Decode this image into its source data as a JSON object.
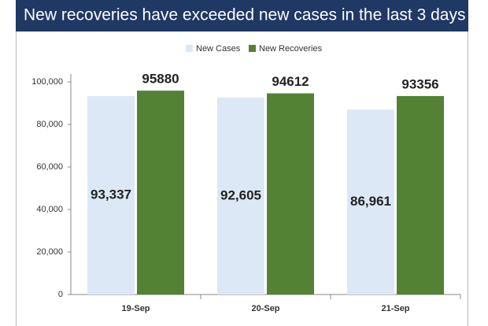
{
  "chart_data": {
    "type": "bar",
    "title": "New recoveries have exceeded new cases in the last 3 days",
    "categories": [
      "19-Sep",
      "20-Sep",
      "21-Sep"
    ],
    "series": [
      {
        "name": "New Cases",
        "color": "#dce8f5",
        "values": [
          93337,
          92605,
          86961
        ],
        "value_labels": [
          "93,337",
          "92,605",
          "86,961"
        ]
      },
      {
        "name": "New Recoveries",
        "color": "#548235",
        "values": [
          95880,
          94612,
          93356
        ]
      }
    ],
    "ylim": [
      0,
      100000
    ],
    "yticks": [
      0,
      {
        "value": 20000,
        "label": "20,000"
      },
      {
        "value": 40000,
        "label": "40,000"
      },
      {
        "value": 60000,
        "label": "60,000"
      },
      {
        "value": 80000,
        "label": "80,000"
      },
      {
        "value": 100000,
        "label": "100,000"
      }
    ],
    "legend": "top"
  }
}
